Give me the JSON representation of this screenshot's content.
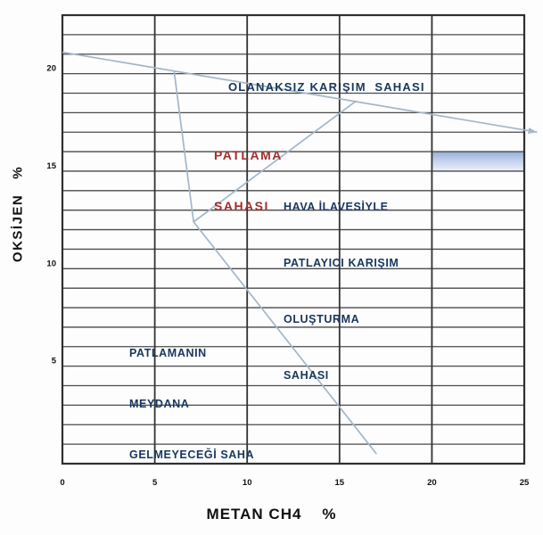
{
  "colors": {
    "navy": "#17365d",
    "red": "#a32e2c",
    "series_line": "#a3b6c9",
    "grid_h": "#4a4a4a",
    "grid_v": "#333333",
    "border": "#2f2f2f",
    "tick_text": "#111111",
    "band_top": "#96aed8",
    "band_mid": "#c6d4ec",
    "band_bottom": "#ecf1fa"
  },
  "chart_data": {
    "type": "line",
    "title": "",
    "xlabel": "METAN CH4    %",
    "ylabel": "OKSİJEN   %",
    "xlim": [
      0,
      25
    ],
    "ylim": [
      0,
      23
    ],
    "x_gridline_step": 5,
    "y_gridline_step": 1,
    "grid": true,
    "legend": false,
    "x_tick_values": [
      0,
      5,
      10,
      15,
      20,
      25
    ],
    "x_tick_labels": [
      "0",
      "5",
      "10",
      "15",
      "20",
      "25"
    ],
    "y_tick_values": [
      5,
      10,
      15,
      20
    ],
    "y_tick_labels": [
      "5",
      "10",
      "15",
      "20"
    ],
    "series": [
      {
        "name": "air-line",
        "points": [
          [
            0,
            21.1
          ],
          [
            25.7,
            17.0
          ]
        ],
        "arrow_end": true
      },
      {
        "name": "lower-explosive-limit-line",
        "points": [
          [
            6.05,
            20.1
          ],
          [
            7.1,
            12.4
          ]
        ],
        "arrow_end": false
      },
      {
        "name": "nose-upper-limit-line",
        "points": [
          [
            7.1,
            12.4
          ],
          [
            15.9,
            18.6
          ]
        ],
        "arrow_end": false
      },
      {
        "name": "dilution-no-explosion-line",
        "points": [
          [
            7.1,
            12.4
          ],
          [
            17.0,
            0.5
          ]
        ],
        "arrow_end": false
      }
    ],
    "highlight_band": {
      "x_range": [
        20,
        25
      ],
      "y_range": [
        15,
        16
      ]
    },
    "annotations": {
      "impossible_mixture_area": {
        "lines": [
          "OLANAKSIZ KARIŞIM  SAHASI"
        ],
        "color": "navy"
      },
      "explosion_area": {
        "lines": [
          "PATLAMA",
          "SAHASI"
        ],
        "color": "red"
      },
      "explosive_with_air_addition_area": {
        "lines": [
          "HAVA İLAVESİYLE",
          "PATLAYICI KARIŞIM",
          "OLUŞTURMA",
          "SAHASI"
        ],
        "color": "navy"
      },
      "no_explosion_area": {
        "lines": [
          "PATLAMANIN",
          "MEYDANA",
          "GELMEYECEĞİ SAHA"
        ],
        "color": "navy"
      }
    }
  }
}
